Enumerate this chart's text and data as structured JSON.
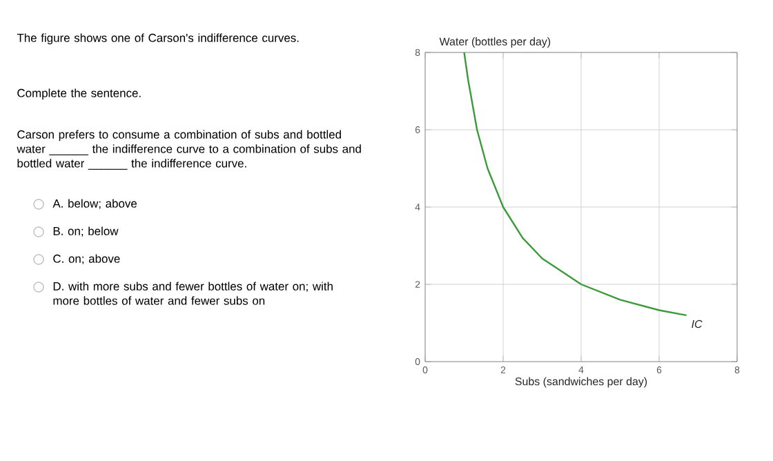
{
  "chart_data": {
    "type": "line",
    "xlabel": "Subs (sandwiches per day)",
    "ylabel": "Water (bottles per day)",
    "series": [
      {
        "name": "IC",
        "color": "#3a9a3a",
        "x": [
          1,
          1.1,
          1.33,
          1.6,
          2,
          2.5,
          3,
          4,
          5,
          6,
          6.7
        ],
        "values": [
          8,
          7.3,
          6,
          5,
          4,
          3.2,
          2.67,
          2,
          1.6,
          1.33,
          1.2
        ]
      }
    ],
    "xlim": [
      0,
      8
    ],
    "ylim": [
      0,
      8
    ],
    "xticks": [
      0,
      2,
      4,
      6,
      8
    ],
    "yticks": [
      0,
      2,
      4,
      6,
      8
    ],
    "grid": true,
    "marker": "none",
    "line_style": "solid",
    "annotations": [
      "The figure shows one of Carson's indifference curves.",
      "Complete the sentence.",
      "Carson prefers to consume a combination of subs and bottled water ______ the indifference curve to a combination of subs and bottled water ______ the indifference curve.",
      "A. below; above",
      "B. on; below",
      "C. on; above",
      "D. with more subs and fewer bottles of water on; with more bottles of water and fewer subs on"
    ]
  }
}
